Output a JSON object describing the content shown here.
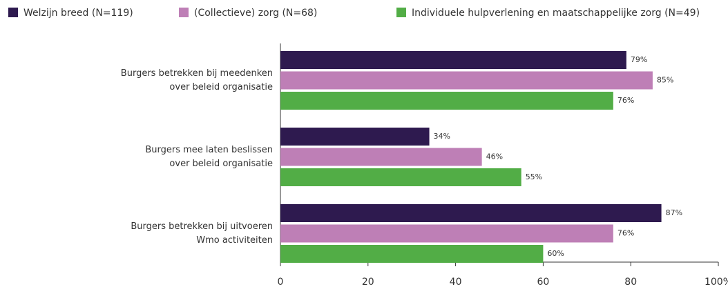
{
  "chart_data": {
    "type": "bar",
    "orientation": "horizontal",
    "categories": [
      [
        "Burgers betrekken bij meedenken",
        "over beleid organisatie"
      ],
      [
        "Burgers mee laten beslissen",
        "over beleid organisatie"
      ],
      [
        "Burgers betrekken bij uitvoeren",
        "Wmo activiteiten"
      ]
    ],
    "series": [
      {
        "name": "Welzijn breed (N=119)",
        "color": "#2e1a4f",
        "values": [
          79,
          34,
          87
        ],
        "value_labels": [
          "79%",
          "34%",
          "87%"
        ]
      },
      {
        "name": "(Collectieve) zorg  (N=68)",
        "color": "#be7fb6",
        "values": [
          85,
          46,
          76
        ],
        "value_labels": [
          "85%",
          "46%",
          "76%"
        ]
      },
      {
        "name": "Individuele hulpverlening en maatschappelijke zorg (N=49)",
        "color": "#52ad46",
        "values": [
          76,
          55,
          60
        ],
        "value_labels": [
          "76%",
          "55%",
          "60%"
        ]
      }
    ],
    "xlim": [
      0,
      100
    ],
    "xticks": [
      0,
      20,
      40,
      60,
      80,
      {
        "value": 100,
        "label": "100%"
      }
    ],
    "legend": "top"
  }
}
